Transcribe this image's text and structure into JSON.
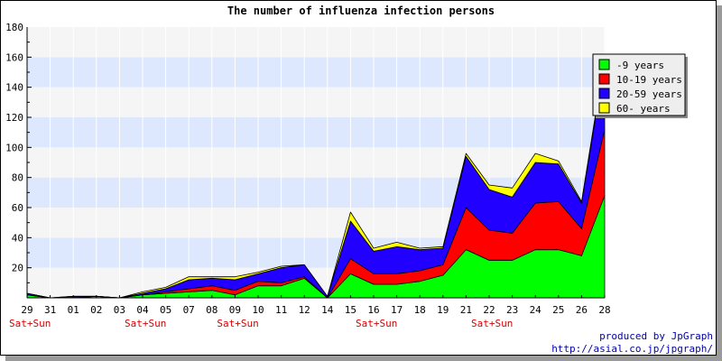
{
  "chart_data": {
    "type": "area",
    "stacked": true,
    "title": "The number of influenza infection persons",
    "categories": [
      "29",
      "31",
      "01",
      "02",
      "03",
      "04",
      "05",
      "07",
      "08",
      "09",
      "10",
      "11",
      "12",
      "14",
      "15",
      "16",
      "17",
      "18",
      "19",
      "21",
      "22",
      "23",
      "24",
      "25",
      "26",
      "28"
    ],
    "weekend_markers": [
      {
        "label": "Sat+Sun",
        "at": "29"
      },
      {
        "label": "Sat+Sun",
        "at": "04"
      },
      {
        "label": "Sat+Sun",
        "at": "09"
      },
      {
        "label": "Sat+Sun",
        "at": "16"
      },
      {
        "label": "Sat+Sun",
        "at": "22"
      }
    ],
    "series": [
      {
        "name": "-9 years",
        "color": "#00ff00",
        "values": [
          2,
          0,
          0,
          1,
          0,
          2,
          3,
          4,
          5,
          2,
          8,
          8,
          13,
          0,
          16,
          9,
          9,
          11,
          15,
          32,
          25,
          25,
          32,
          32,
          28,
          68
        ]
      },
      {
        "name": "10-19 years",
        "color": "#ff0000",
        "values": [
          0,
          0,
          0,
          0,
          0,
          0,
          1,
          2,
          3,
          3,
          3,
          2,
          1,
          0,
          10,
          7,
          7,
          7,
          7,
          28,
          20,
          18,
          31,
          32,
          18,
          44
        ]
      },
      {
        "name": "20-59 years",
        "color": "#2200ff",
        "values": [
          1,
          0,
          1,
          0,
          0,
          1,
          2,
          6,
          5,
          7,
          5,
          10,
          8,
          1,
          25,
          15,
          18,
          14,
          11,
          34,
          27,
          24,
          27,
          25,
          17,
          45
        ]
      },
      {
        "name": "60- years",
        "color": "#ffff00",
        "values": [
          0,
          0,
          0,
          0,
          0,
          1,
          1,
          2,
          1,
          2,
          1,
          1,
          0,
          0,
          6,
          2,
          3,
          1,
          1,
          2,
          3,
          6,
          6,
          2,
          1,
          3
        ]
      }
    ],
    "ylim": [
      0,
      180
    ],
    "yticks": [
      20,
      40,
      60,
      80,
      100,
      120,
      140,
      160,
      180
    ],
    "grid": true,
    "band_colors": [
      "#f5f5f5",
      "#dde8ff"
    ],
    "legend_position": "top-right"
  },
  "footer": {
    "produced_by": "produced by JpGraph",
    "url": "http://asial.co.jp/jpgraph/"
  }
}
